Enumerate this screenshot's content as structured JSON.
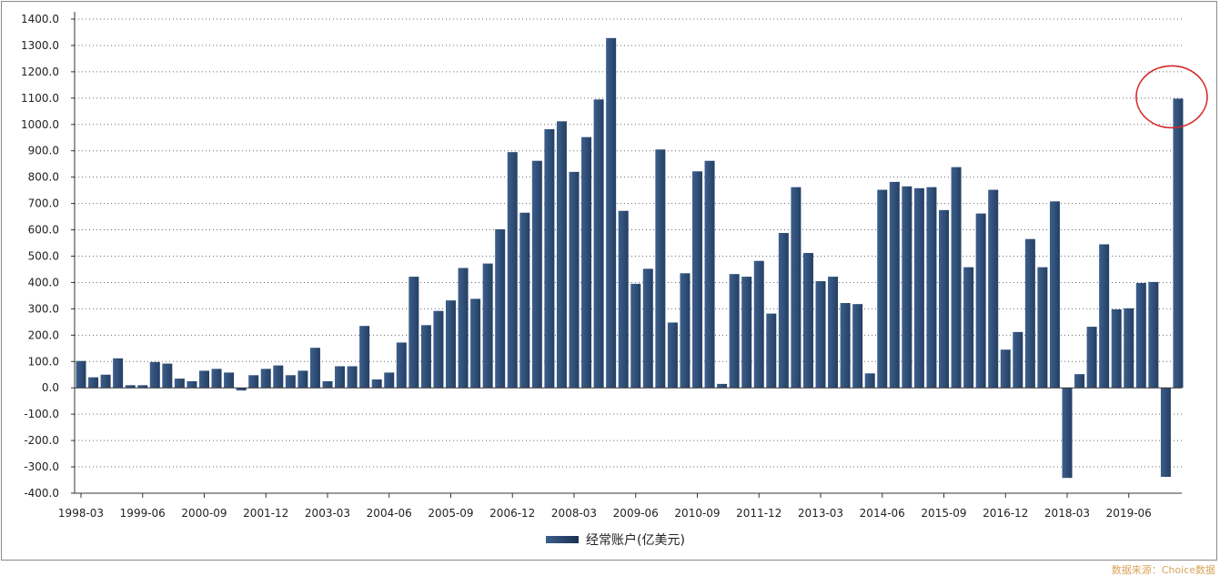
{
  "chart_data": {
    "type": "bar",
    "title": "",
    "xlabel": "",
    "ylabel": "",
    "ylim": [
      -400,
      1400
    ],
    "y_ticks": [
      "1400.0",
      "1300.0",
      "1200.0",
      "1100.0",
      "1000.0",
      "900.0",
      "800.0",
      "700.0",
      "600.0",
      "500.0",
      "400.0",
      "300.0",
      "200.0",
      "100.0",
      "0.0",
      "-100.0",
      "-200.0",
      "-300.0",
      "-400.0"
    ],
    "x_tick_labels": [
      "1998-03",
      "1999-06",
      "2000-09",
      "2001-12",
      "2003-03",
      "2004-06",
      "2005-09",
      "2006-12",
      "2008-03",
      "2009-06",
      "2010-09",
      "2011-12",
      "2013-03",
      "2014-06",
      "2015-09",
      "2016-12",
      "2018-03",
      "2019-06"
    ],
    "grid": true,
    "legend_position": "bottom",
    "bar_color": "#243f63",
    "series": [
      {
        "name": "经常账户(亿美元)",
        "values": [
          102,
          40,
          50,
          112,
          10,
          10,
          98,
          92,
          35,
          25,
          65,
          72,
          58,
          -10,
          48,
          72,
          85,
          48,
          65,
          152,
          25,
          82,
          82,
          235,
          32,
          58,
          172,
          422,
          238,
          292,
          332,
          455,
          338,
          472,
          602,
          895,
          665,
          862,
          982,
          1012,
          820,
          952,
          1095,
          1328,
          672,
          395,
          452,
          905,
          248,
          435,
          822,
          862,
          15,
          432,
          422,
          482,
          282,
          588,
          762,
          512,
          405,
          422,
          322,
          318,
          55,
          752,
          782,
          765,
          758,
          762,
          675,
          838,
          458,
          662,
          752,
          145,
          212,
          565,
          458,
          708,
          -342,
          52,
          232,
          545,
          298,
          302,
          398,
          402,
          -338,
          1098
        ]
      }
    ],
    "annotation": {
      "type": "circle",
      "marks_last_bar": true,
      "color": "#d42a2a"
    }
  },
  "source_label": "数据来源：Choice数据"
}
